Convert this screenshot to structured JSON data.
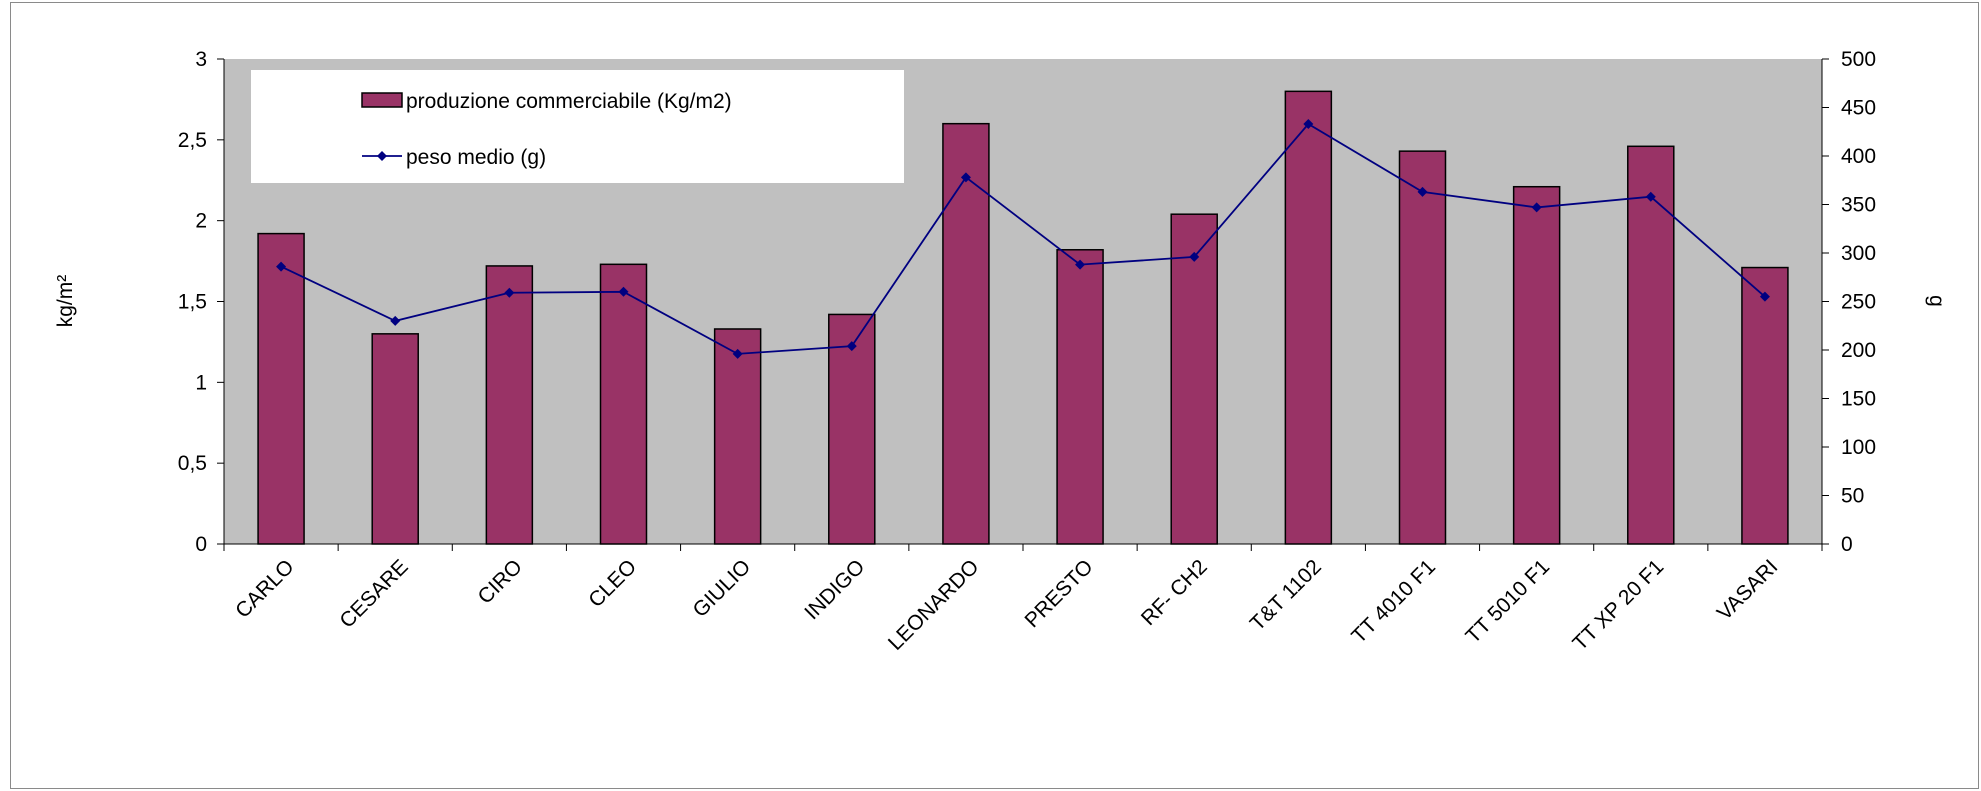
{
  "caption": "",
  "chart_data": {
    "type": "bar",
    "categories": [
      "CARLO",
      "CESARE",
      "CIRO",
      "CLEO",
      "GIULIO",
      "INDIGO",
      "LEONARDO",
      "PRESTO",
      "RF- CH2",
      "T&T 1102",
      "TT 4010 F1",
      "TT 5010 F1",
      "TT XP 20 F1",
      "VASARI"
    ],
    "series": [
      {
        "name": "produzione commerciabile (Kg/m2)",
        "kind": "bar",
        "axis": "left",
        "color": "#993366",
        "values": [
          1.92,
          1.3,
          1.72,
          1.73,
          1.33,
          1.42,
          2.6,
          1.82,
          2.04,
          2.8,
          2.43,
          2.21,
          2.46,
          1.71
        ]
      },
      {
        "name": "peso medio (g)",
        "kind": "line",
        "axis": "right",
        "color": "#000080",
        "values": [
          286,
          230,
          259,
          260,
          196,
          204,
          378,
          288,
          296,
          433,
          363,
          347,
          358,
          255
        ]
      }
    ],
    "ylabel_left": "kg/m²",
    "ylabel_right": "g",
    "ylim_left": [
      0,
      3
    ],
    "yticks_left": [
      "0",
      "0,5",
      "1",
      "1,5",
      "2",
      "2,5",
      "3"
    ],
    "ylim_right": [
      0,
      500
    ],
    "yticks_right": [
      "0",
      "50",
      "100",
      "150",
      "200",
      "250",
      "300",
      "350",
      "400",
      "450",
      "500"
    ],
    "plot_background": "#c0c0c0",
    "grid": false,
    "legend_position": "top-left"
  }
}
